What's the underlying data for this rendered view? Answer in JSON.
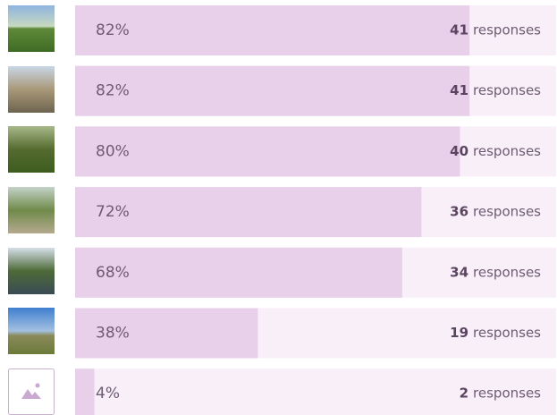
{
  "chart_data": {
    "type": "bar",
    "orientation": "horizontal",
    "values": [
      82,
      82,
      80,
      72,
      68,
      38,
      4
    ],
    "value_labels": [
      "82%",
      "82%",
      "80%",
      "72%",
      "68%",
      "38%",
      "4%"
    ],
    "counts": [
      41,
      41,
      40,
      36,
      34,
      19,
      2
    ],
    "count_label": "responses",
    "xlim": [
      0,
      100
    ],
    "color": "#e8d0ea",
    "track_color": "#f8eff9"
  }
}
